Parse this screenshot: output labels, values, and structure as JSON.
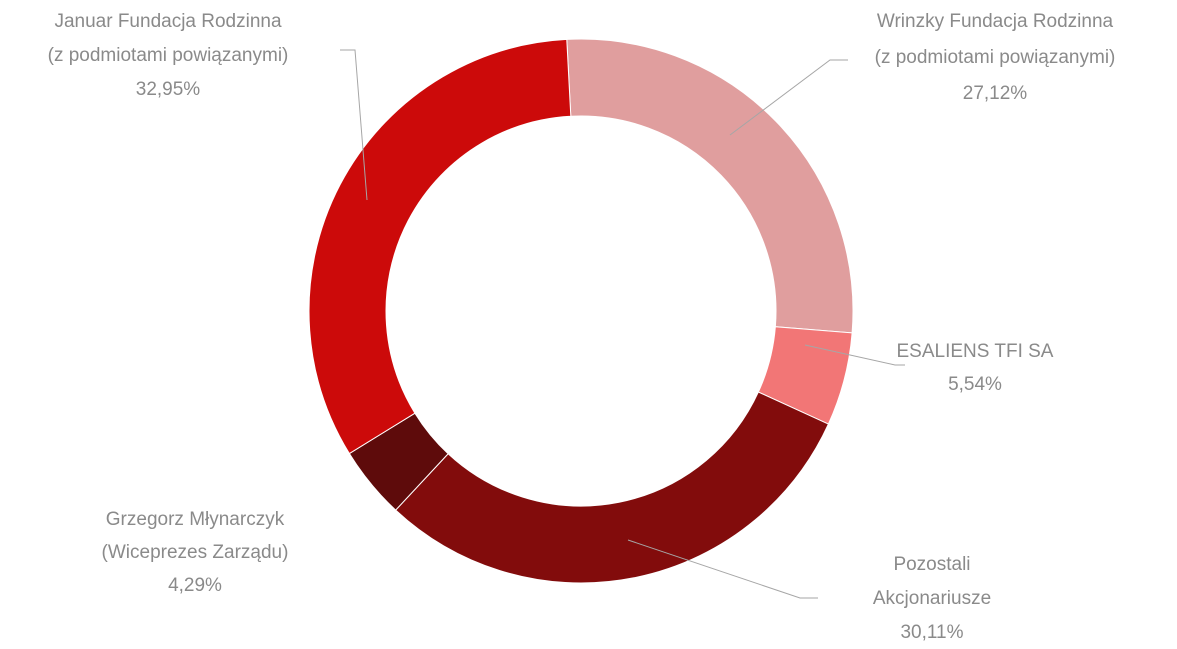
{
  "chart_data": {
    "type": "donut",
    "categories": [
      [
        "Wrinzky Fundacja Rodzinna",
        "(z podmiotami powiązanymi)"
      ],
      [
        "ESALIENS TFI SA"
      ],
      [
        "Pozostali",
        "Akcjonariusze"
      ],
      [
        "Grzegorz Młynarczyk",
        "(Wiceprezes Zarządu)"
      ],
      [
        "Januar Fundacja Rodzinna",
        "(z podmiotami powiązanymi)"
      ]
    ],
    "values": [
      27.12,
      5.54,
      30.11,
      4.29,
      32.95
    ],
    "value_labels": [
      "27,12%",
      "5,54%",
      "30,11%",
      "4,29%",
      "32,95%"
    ],
    "colors": [
      "#e09e9e",
      "#f27676",
      "#820c0c",
      "#5e0b0b",
      "#cc0a0a"
    ]
  }
}
